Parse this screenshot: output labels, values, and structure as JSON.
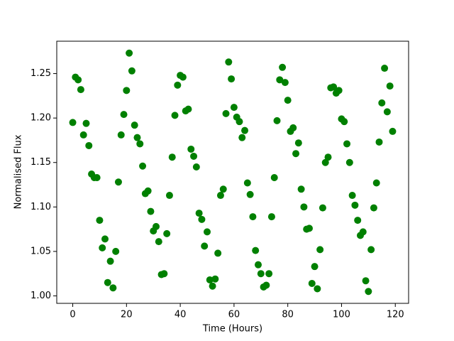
{
  "chart_data": {
    "type": "scatter",
    "x_label": "Time (Hours)",
    "y_label": "Normalised Flux",
    "color": "#008000",
    "xlim": [
      -5.95,
      124.95
    ],
    "ylim": [
      0.9916,
      1.2864
    ],
    "xticks": [
      0,
      20,
      40,
      60,
      80,
      100,
      120
    ],
    "yticks": [
      {
        "value": 1.0,
        "label": "1.00"
      },
      1.05,
      {
        "value": 1.1,
        "label": "1.10"
      },
      1.15,
      {
        "value": 1.2,
        "label": "1.20"
      },
      1.25
    ],
    "x": [
      0,
      1,
      2,
      3,
      4,
      5,
      6,
      7,
      8,
      9,
      10,
      11,
      12,
      13,
      14,
      15,
      16,
      17,
      18,
      19,
      20,
      21,
      22,
      23,
      24,
      25,
      26,
      27,
      28,
      29,
      30,
      31,
      32,
      33,
      34,
      35,
      36,
      37,
      38,
      39,
      40,
      41,
      42,
      43,
      44,
      45,
      46,
      47,
      48,
      49,
      50,
      51,
      52,
      53,
      54,
      55,
      56,
      57,
      58,
      59,
      60,
      61,
      62,
      63,
      64,
      65,
      66,
      67,
      68,
      69,
      70,
      71,
      72,
      73,
      74,
      75,
      76,
      77,
      78,
      79,
      80,
      81,
      82,
      83,
      84,
      85,
      86,
      87,
      88,
      89,
      90,
      91,
      92,
      93,
      94,
      95,
      96,
      97,
      98,
      99,
      100,
      101,
      102,
      103,
      104,
      105,
      106,
      107,
      108,
      109,
      110,
      111,
      112,
      113,
      114,
      115,
      116,
      117,
      118,
      119
    ],
    "values": [
      1.195,
      1.246,
      1.243,
      1.232,
      1.181,
      1.194,
      1.169,
      1.137,
      1.133,
      1.133,
      1.085,
      1.054,
      1.064,
      1.015,
      1.039,
      1.009,
      1.05,
      1.128,
      1.181,
      1.204,
      1.231,
      1.273,
      1.253,
      1.192,
      1.178,
      1.171,
      1.146,
      1.115,
      1.118,
      1.095,
      1.073,
      1.078,
      1.061,
      1.024,
      1.025,
      1.07,
      1.113,
      1.156,
      1.203,
      1.237,
      1.248,
      1.246,
      1.208,
      1.21,
      1.165,
      1.157,
      1.145,
      1.093,
      1.086,
      1.056,
      1.072,
      1.018,
      1.011,
      1.019,
      1.048,
      1.113,
      1.12,
      1.205,
      1.263,
      1.244,
      1.212,
      1.201,
      1.196,
      1.178,
      1.186,
      1.127,
      1.114,
      1.089,
      1.051,
      1.035,
      1.025,
      1.01,
      1.012,
      1.025,
      1.089,
      1.133,
      1.197,
      1.243,
      1.257,
      1.24,
      1.22,
      1.185,
      1.189,
      1.16,
      1.172,
      1.12,
      1.1,
      1.075,
      1.076,
      1.014,
      1.033,
      1.008,
      1.052,
      1.099,
      1.15,
      1.156,
      1.234,
      1.235,
      1.228,
      1.231,
      1.199,
      1.196,
      1.171,
      1.15,
      1.113,
      1.102,
      1.085,
      1.068,
      1.072,
      1.017,
      1.005,
      1.052,
      1.099,
      1.127,
      1.173,
      1.217,
      1.256,
      1.207,
      1.236,
      1.185
    ]
  }
}
